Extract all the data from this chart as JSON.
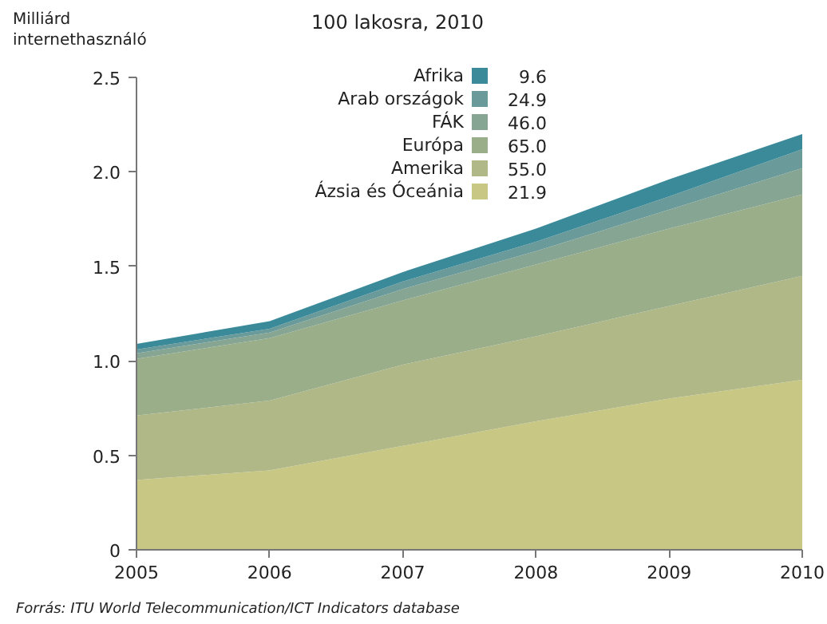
{
  "chart_data": {
    "type": "area",
    "stacked": true,
    "ylabel": "Milliárd\ninternethasználó",
    "legend_title": "100 lakosra, 2010",
    "x": [
      2005,
      2006,
      2007,
      2008,
      2009,
      2010
    ],
    "series": [
      {
        "name": "Ázsia és Óceánia",
        "color": "#c8c884",
        "values": [
          0.37,
          0.42,
          0.55,
          0.68,
          0.8,
          0.9
        ]
      },
      {
        "name": "Amerika",
        "color": "#b0b888",
        "values": [
          0.34,
          0.37,
          0.43,
          0.45,
          0.49,
          0.55
        ]
      },
      {
        "name": "Európa",
        "color": "#9aae8a",
        "values": [
          0.3,
          0.33,
          0.34,
          0.38,
          0.41,
          0.43
        ]
      },
      {
        "name": "FÁK",
        "color": "#87a593",
        "values": [
          0.03,
          0.03,
          0.06,
          0.07,
          0.1,
          0.14
        ]
      },
      {
        "name": "Arab országok",
        "color": "#6b9a9a",
        "values": [
          0.02,
          0.02,
          0.04,
          0.05,
          0.07,
          0.1
        ]
      },
      {
        "name": "Afrika",
        "color": "#3a8a9a",
        "values": [
          0.03,
          0.04,
          0.05,
          0.07,
          0.09,
          0.08
        ]
      }
    ],
    "xlim": [
      2005,
      2010
    ],
    "xticks": [
      2005,
      2006,
      2007,
      2008,
      2009,
      2010
    ],
    "ylim": [
      0,
      2.5
    ],
    "yticks": [
      {
        "value": 0,
        "label": "0"
      },
      0.5,
      {
        "value": 1,
        "label": "1.0"
      },
      1.5,
      {
        "value": 2,
        "label": "2.0"
      },
      2.5
    ],
    "grid": false,
    "legend": "top",
    "annotations": [
      "9.6",
      "24.9",
      "46.0",
      "65.0",
      "55.0",
      "21.9",
      "Forrás: ITU World Telecommunication/ICT Indicators database"
    ]
  }
}
